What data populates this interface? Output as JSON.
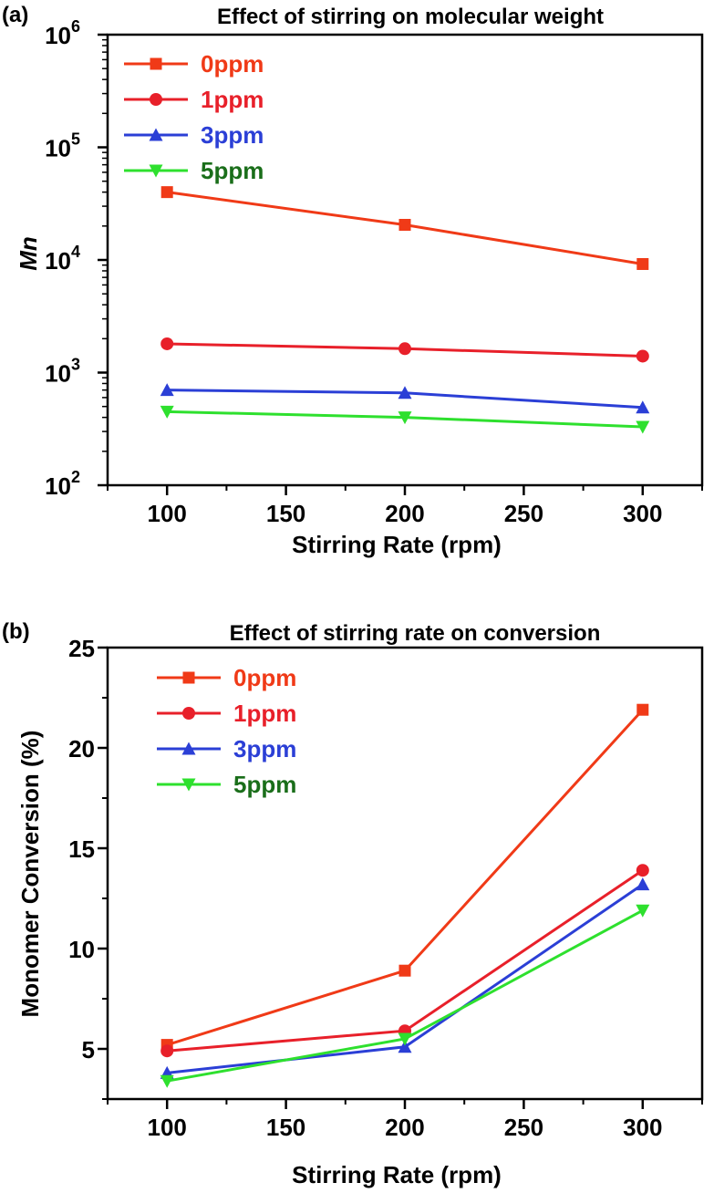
{
  "chart_data": [
    {
      "panel_label": "(a)",
      "type": "line",
      "title": "Effect of stirring on molecular weight",
      "xlabel": "Stirring Rate (rpm)",
      "ylabel": "Mn",
      "yscale": "log",
      "xlim": [
        75,
        325
      ],
      "ylim": [
        100,
        1000000
      ],
      "xticks": [
        100,
        150,
        200,
        250,
        300
      ],
      "xtick_labels": [
        "100",
        "150",
        "200",
        "250",
        "300"
      ],
      "yticks": [
        100,
        1000,
        10000,
        100000,
        1000000
      ],
      "ytick_labels": [
        {
          "base": "10",
          "exp": "2"
        },
        {
          "base": "10",
          "exp": "3"
        },
        {
          "base": "10",
          "exp": "4"
        },
        {
          "base": "10",
          "exp": "5"
        },
        {
          "base": "10",
          "exp": "6"
        }
      ],
      "legend_position": "top-left",
      "x": [
        100,
        200,
        300
      ],
      "series": [
        {
          "name": "0ppm",
          "color": "#f03a17",
          "text_color": "#f03a17",
          "marker": "square",
          "values": [
            40000,
            20500,
            9200
          ]
        },
        {
          "name": "1ppm",
          "color": "#e8202a",
          "text_color": "#e8202a",
          "marker": "circle",
          "values": [
            1800,
            1630,
            1400
          ]
        },
        {
          "name": "3ppm",
          "color": "#2b3fd6",
          "text_color": "#2b3fd6",
          "marker": "triangle-up",
          "values": [
            700,
            660,
            490
          ]
        },
        {
          "name": "5ppm",
          "color": "#2ee02e",
          "text_color": "#1a6e1a",
          "marker": "triangle-down",
          "values": [
            450,
            400,
            330
          ]
        }
      ]
    },
    {
      "panel_label": "(b)",
      "type": "line",
      "title": "Effect of stirring rate on conversion",
      "xlabel": "Stirring Rate (rpm)",
      "ylabel": "Monomer Conversion (%)",
      "yscale": "linear",
      "xlim": [
        75,
        325
      ],
      "ylim": [
        2.5,
        25
      ],
      "xticks": [
        100,
        150,
        200,
        250,
        300
      ],
      "xtick_labels": [
        "100",
        "150",
        "200",
        "250",
        "300"
      ],
      "yticks": [
        5,
        10,
        15,
        20,
        25
      ],
      "ytick_labels": [
        "5",
        "10",
        "15",
        "20",
        "25"
      ],
      "legend_position": "top-left",
      "x": [
        100,
        200,
        300
      ],
      "series": [
        {
          "name": "0ppm",
          "color": "#f03a17",
          "text_color": "#f03a17",
          "marker": "square",
          "values": [
            5.2,
            8.9,
            21.9
          ]
        },
        {
          "name": "1ppm",
          "color": "#e8202a",
          "text_color": "#e8202a",
          "marker": "circle",
          "values": [
            4.9,
            5.9,
            13.9
          ]
        },
        {
          "name": "3ppm",
          "color": "#2b3fd6",
          "text_color": "#2b3fd6",
          "marker": "triangle-up",
          "values": [
            3.8,
            5.1,
            13.2
          ]
        },
        {
          "name": "5ppm",
          "color": "#2ee02e",
          "text_color": "#1a6e1a",
          "marker": "triangle-down",
          "values": [
            3.4,
            5.5,
            11.9
          ]
        }
      ]
    }
  ]
}
